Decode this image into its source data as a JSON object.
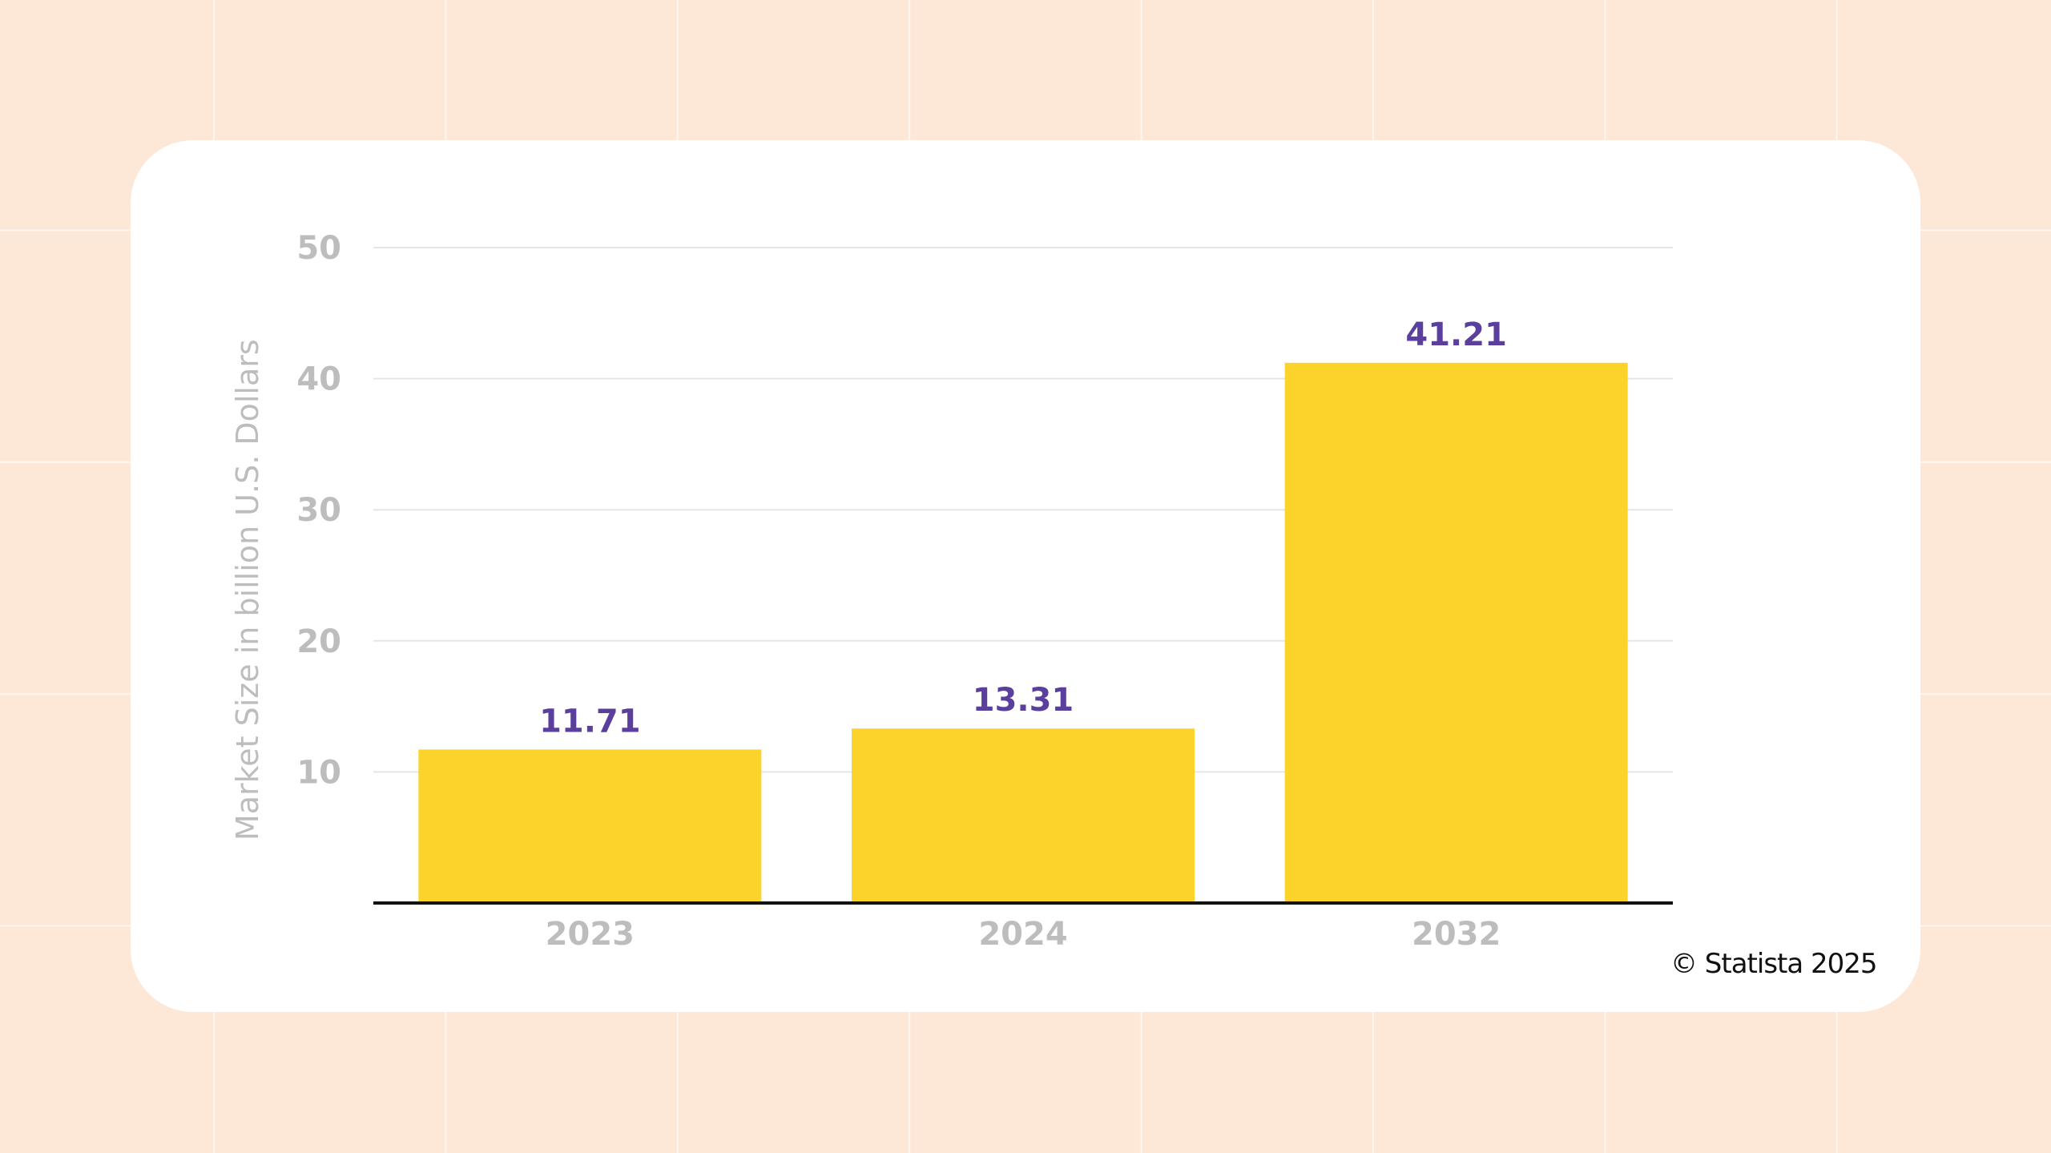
{
  "chart_data": {
    "type": "bar",
    "categories": [
      "2023",
      "2024",
      "2032"
    ],
    "values": [
      11.71,
      13.31,
      41.21
    ],
    "data_labels": [
      "11.71",
      "13.31",
      "41.21"
    ],
    "ylabel": "Market Size in billion U.S. Dollars",
    "ylim": [
      0,
      50
    ],
    "yticks": [
      10,
      20,
      30,
      40,
      50
    ],
    "grid": true,
    "legend": "none",
    "bar_color": "#fbd32a",
    "label_color": "#5b3f9c"
  },
  "credit": "© Statista 2025"
}
